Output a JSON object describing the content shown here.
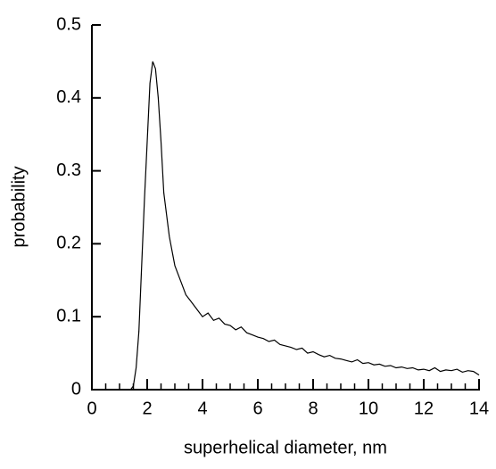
{
  "chart_data": {
    "type": "line",
    "xlabel": "superhelical diameter, nm",
    "ylabel": "probability",
    "x": [
      1.4,
      1.5,
      1.6,
      1.7,
      1.8,
      1.9,
      2.0,
      2.1,
      2.2,
      2.3,
      2.4,
      2.5,
      2.6,
      2.7,
      2.8,
      2.9,
      3.0,
      3.2,
      3.4,
      3.6,
      3.8,
      4.0,
      4.2,
      4.4,
      4.6,
      4.8,
      5.0,
      5.2,
      5.4,
      5.6,
      5.8,
      6.0,
      6.2,
      6.4,
      6.6,
      6.8,
      7.0,
      7.2,
      7.4,
      7.6,
      7.8,
      8.0,
      8.2,
      8.4,
      8.6,
      8.8,
      9.0,
      9.2,
      9.4,
      9.6,
      9.8,
      10.0,
      10.2,
      10.4,
      10.6,
      10.8,
      11.0,
      11.2,
      11.4,
      11.6,
      11.8,
      12.0,
      12.2,
      12.4,
      12.6,
      12.8,
      13.0,
      13.2,
      13.4,
      13.6,
      13.8,
      14.0
    ],
    "values": [
      0,
      0.005,
      0.03,
      0.08,
      0.17,
      0.26,
      0.34,
      0.42,
      0.45,
      0.44,
      0.4,
      0.34,
      0.27,
      0.24,
      0.21,
      0.19,
      0.17,
      0.15,
      0.13,
      0.12,
      0.11,
      0.1,
      0.105,
      0.095,
      0.098,
      0.09,
      0.088,
      0.082,
      0.086,
      0.078,
      0.075,
      0.072,
      0.07,
      0.066,
      0.068,
      0.062,
      0.06,
      0.058,
      0.055,
      0.057,
      0.05,
      0.052,
      0.048,
      0.045,
      0.047,
      0.043,
      0.042,
      0.04,
      0.038,
      0.041,
      0.036,
      0.037,
      0.034,
      0.035,
      0.032,
      0.033,
      0.03,
      0.031,
      0.029,
      0.03,
      0.027,
      0.028,
      0.026,
      0.03,
      0.025,
      0.027,
      0.026,
      0.028,
      0.024,
      0.026,
      0.025,
      0.02
    ],
    "color": "#000000",
    "xlim": [
      0,
      14
    ],
    "xticks": [
      0,
      2,
      4,
      6,
      8,
      10,
      12,
      14
    ],
    "xminorticks": [
      0.5,
      1,
      1.5,
      2.5,
      3,
      3.5,
      4.5,
      5,
      5.5,
      6.5,
      7,
      7.5,
      8.5,
      9,
      9.5,
      10.5,
      11,
      11.5,
      12.5,
      13,
      13.5
    ],
    "ylim": [
      0,
      0.5
    ],
    "yticks": [
      0,
      0.1,
      0.2,
      0.3,
      0.4,
      0.5
    ]
  }
}
